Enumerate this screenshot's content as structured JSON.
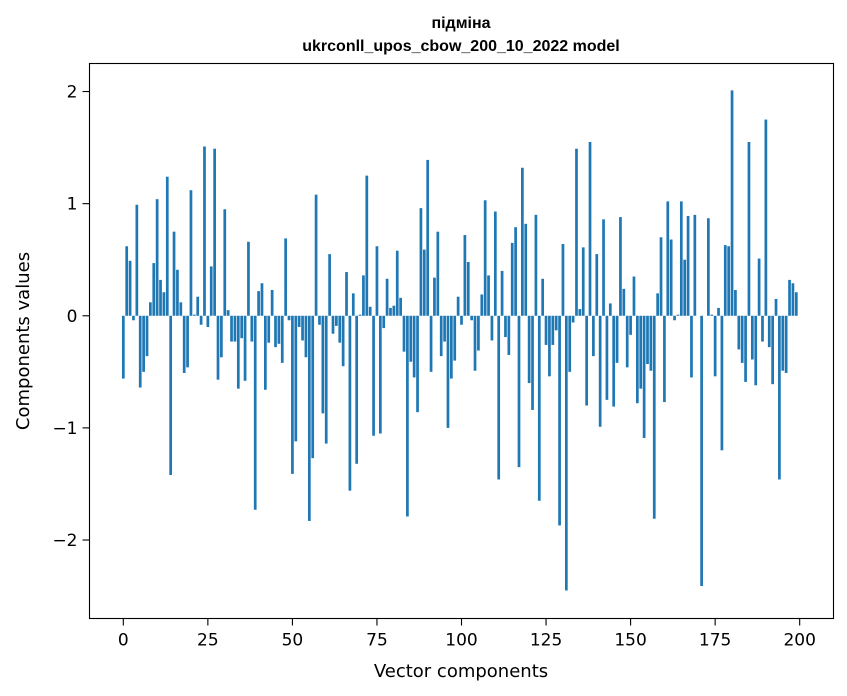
{
  "chart_data": {
    "type": "bar",
    "title": "підміна",
    "subtitle": "ukrconll_upos_cbow_200_10_2022 model",
    "xlabel": "Vector components",
    "ylabel": "Components values",
    "xlim": [
      -10,
      210
    ],
    "ylim": [
      -2.7,
      2.25
    ],
    "xticks": [
      0,
      25,
      50,
      75,
      100,
      125,
      150,
      175,
      200
    ],
    "yticks": [
      -2,
      -1,
      0,
      1,
      2
    ],
    "xtick_labels": [
      "0",
      "25",
      "50",
      "75",
      "100",
      "125",
      "150",
      "175",
      "200"
    ],
    "ytick_labels": [
      "−2",
      "−1",
      "0",
      "1",
      "2"
    ],
    "grid": false,
    "bar_color": "#1f77b4",
    "x": [
      0,
      1,
      2,
      3,
      4,
      5,
      6,
      7,
      8,
      9,
      10,
      11,
      12,
      13,
      14,
      15,
      16,
      17,
      18,
      19,
      20,
      21,
      22,
      23,
      24,
      25,
      26,
      27,
      28,
      29,
      30,
      31,
      32,
      33,
      34,
      35,
      36,
      37,
      38,
      39,
      40,
      41,
      42,
      43,
      44,
      45,
      46,
      47,
      48,
      49,
      50,
      51,
      52,
      53,
      54,
      55,
      56,
      57,
      58,
      59,
      60,
      61,
      62,
      63,
      64,
      65,
      66,
      67,
      68,
      69,
      70,
      71,
      72,
      73,
      74,
      75,
      76,
      77,
      78,
      79,
      80,
      81,
      82,
      83,
      84,
      85,
      86,
      87,
      88,
      89,
      90,
      91,
      92,
      93,
      94,
      95,
      96,
      97,
      98,
      99,
      100,
      101,
      102,
      103,
      104,
      105,
      106,
      107,
      108,
      109,
      110,
      111,
      112,
      113,
      114,
      115,
      116,
      117,
      118,
      119,
      120,
      121,
      122,
      123,
      124,
      125,
      126,
      127,
      128,
      129,
      130,
      131,
      132,
      133,
      134,
      135,
      136,
      137,
      138,
      139,
      140,
      141,
      142,
      143,
      144,
      145,
      146,
      147,
      148,
      149,
      150,
      151,
      152,
      153,
      154,
      155,
      156,
      157,
      158,
      159,
      160,
      161,
      162,
      163,
      164,
      165,
      166,
      167,
      168,
      169,
      170,
      171,
      172,
      173,
      174,
      175,
      176,
      177,
      178,
      179,
      180,
      181,
      182,
      183,
      184,
      185,
      186,
      187,
      188,
      189,
      190,
      191,
      192,
      193,
      194,
      195,
      196,
      197,
      198,
      199
    ],
    "values": [
      -0.56,
      0.62,
      0.49,
      -0.04,
      0.99,
      -0.64,
      -0.5,
      -0.36,
      0.12,
      0.47,
      1.04,
      0.32,
      0.21,
      1.24,
      -1.42,
      0.75,
      0.41,
      0.12,
      -0.51,
      -0.46,
      1.12,
      0.01,
      0.17,
      -0.08,
      1.51,
      -0.1,
      0.44,
      1.49,
      -0.57,
      -0.37,
      0.95,
      0.05,
      -0.23,
      -0.23,
      -0.65,
      -0.2,
      -0.58,
      0.66,
      -0.23,
      -1.73,
      0.22,
      0.29,
      -0.66,
      -0.24,
      0.23,
      -0.28,
      -0.25,
      -0.42,
      0.69,
      -0.04,
      -1.41,
      -1.12,
      -0.1,
      -0.22,
      -0.37,
      -1.83,
      -1.27,
      1.08,
      -0.08,
      -0.87,
      -1.14,
      0.55,
      -0.16,
      -0.09,
      -0.24,
      -0.45,
      0.39,
      -1.56,
      0.2,
      -1.32,
      0.01,
      0.36,
      1.25,
      0.08,
      -1.07,
      0.62,
      -1.05,
      -0.11,
      0.33,
      0.07,
      0.09,
      0.58,
      0.16,
      -0.32,
      -1.79,
      -0.41,
      -0.55,
      -0.86,
      0.96,
      0.59,
      1.39,
      -0.5,
      0.34,
      0.75,
      -0.36,
      -0.23,
      -1.0,
      -0.56,
      -0.4,
      0.17,
      -0.08,
      0.72,
      0.48,
      -0.04,
      -0.49,
      -0.31,
      0.19,
      1.03,
      0.36,
      -0.22,
      0.93,
      -1.46,
      0.4,
      -0.19,
      -0.35,
      0.65,
      0.79,
      -1.35,
      1.32,
      0.82,
      -0.6,
      -0.84,
      0.9,
      -1.65,
      0.33,
      -0.26,
      -0.54,
      -0.26,
      -0.13,
      -1.87,
      0.64,
      -2.45,
      -0.5,
      -0.06,
      1.49,
      0.06,
      0.61,
      -0.8,
      1.55,
      -0.36,
      0.55,
      -0.99,
      0.86,
      -0.75,
      0.11,
      -0.81,
      -0.42,
      0.88,
      0.24,
      -0.46,
      -0.17,
      0.35,
      -0.78,
      -0.65,
      -1.09,
      -0.43,
      -0.49,
      -1.81,
      0.2,
      0.7,
      -0.77,
      1.02,
      0.68,
      -0.04,
      0.01,
      1.02,
      0.5,
      0.89,
      -0.55,
      0.9,
      0.0,
      -2.41,
      0.0,
      0.87,
      0.01,
      -0.54,
      0.07,
      -1.2,
      0.63,
      0.62,
      2.01,
      0.23,
      -0.3,
      -0.42,
      -0.59,
      1.55,
      -0.39,
      -0.62,
      0.51,
      -0.23,
      1.75,
      -0.28,
      -0.61,
      0.15,
      -1.46,
      -0.49,
      -0.51,
      0.32,
      0.29,
      0.21
    ]
  }
}
